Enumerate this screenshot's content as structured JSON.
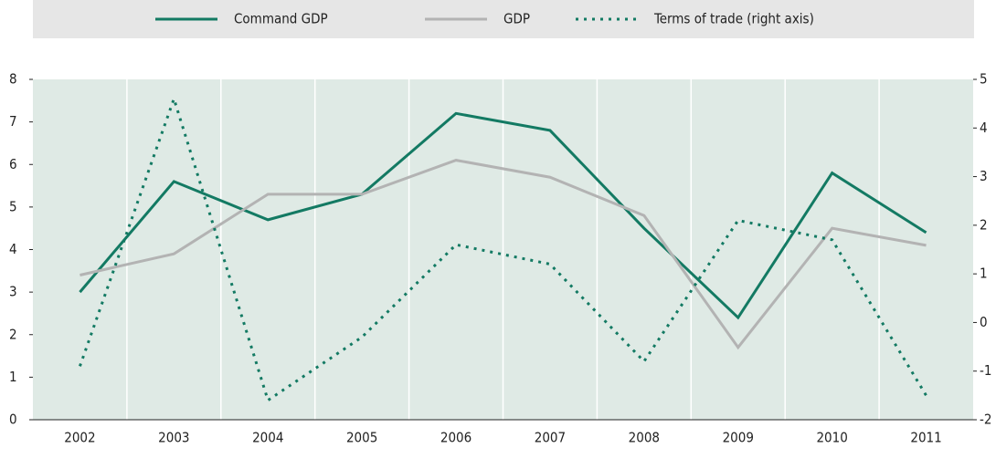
{
  "chart_data": {
    "type": "line",
    "categories": [
      "2002",
      "2003",
      "2004",
      "2005",
      "2006",
      "2007",
      "2008",
      "2009",
      "2010",
      "2011"
    ],
    "series": [
      {
        "name": "Command GDP",
        "color": "#137a63",
        "dash": "solid",
        "values": [
          3.0,
          5.6,
          4.7,
          5.3,
          7.2,
          6.8,
          4.5,
          2.4,
          5.8,
          4.4
        ]
      },
      {
        "name": "GDP",
        "color": "#b3b3b3",
        "dash": "solid",
        "values": [
          3.4,
          3.9,
          5.3,
          5.3,
          6.1,
          5.7,
          4.8,
          1.7,
          4.5,
          4.1
        ]
      },
      {
        "name": "Terms of trade (right axis)",
        "color": "#137a63",
        "dash": "dotted",
        "axis": "y2",
        "values": [
          -0.9,
          4.6,
          -1.6,
          -0.3,
          1.6,
          1.2,
          -0.8,
          2.1,
          1.7,
          -1.5
        ]
      }
    ],
    "ylim": [
      0,
      8
    ],
    "yticks": [
      0,
      1,
      2,
      3,
      4,
      5,
      6,
      7,
      8
    ],
    "y2lim": [
      -2,
      5
    ],
    "y2ticks": [
      -2,
      -1,
      0,
      1,
      2,
      3,
      4,
      5
    ],
    "legend": "top"
  }
}
